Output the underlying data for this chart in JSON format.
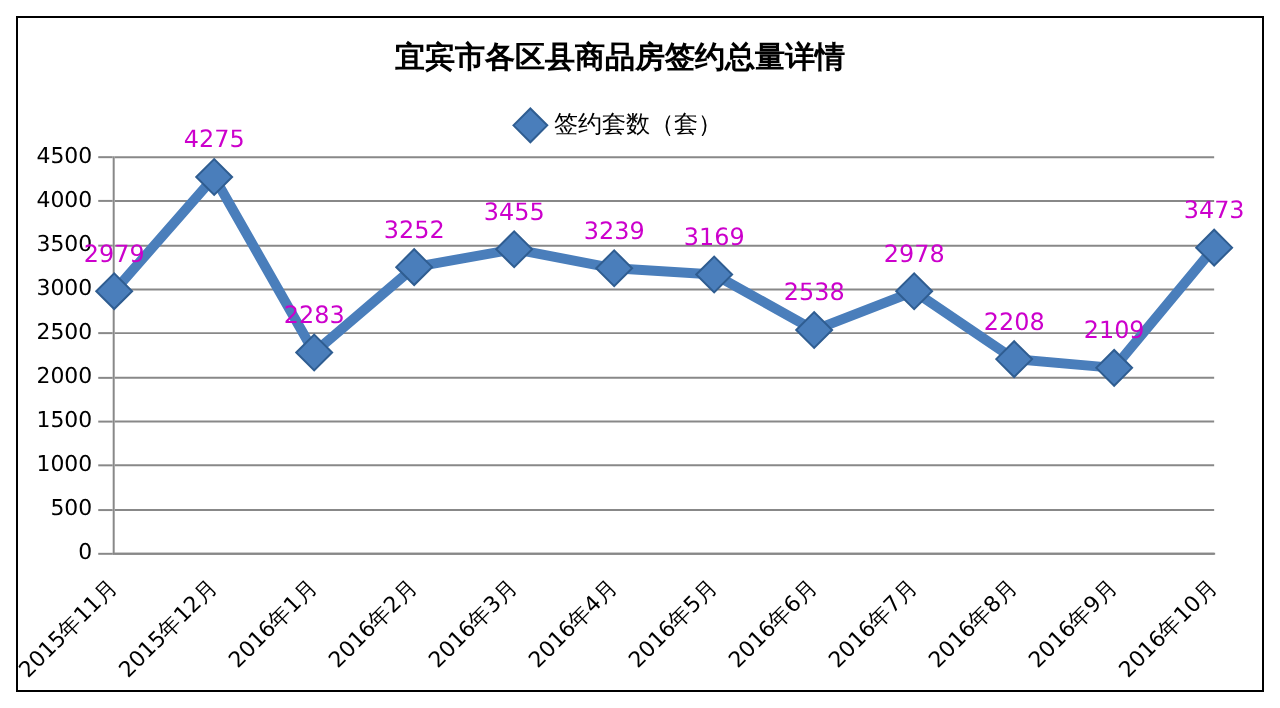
{
  "chart_data": {
    "type": "line",
    "title": "宜宾市各区县商品房签约总量详情",
    "categories": [
      "2015年11月",
      "2015年12月",
      "2016年1月",
      "2016年2月",
      "2016年3月",
      "2016年4月",
      "2016年5月",
      "2016年6月",
      "2016年7月",
      "2016年8月",
      "2016年9月",
      "2016年10月"
    ],
    "series": [
      {
        "name": "签约套数（套）",
        "color": "#4a7ebb",
        "values": [
          2979,
          4275,
          2283,
          3252,
          3455,
          3239,
          3169,
          2538,
          2978,
          2208,
          2109,
          3473
        ]
      }
    ],
    "ylim": [
      0,
      4500
    ],
    "yticks": [
      0,
      500,
      1000,
      1500,
      2000,
      2500,
      3000,
      3500,
      4000,
      4500
    ],
    "grid": "y",
    "legend": "top",
    "marker": "diamond",
    "line_style": "solid",
    "data_labels": true
  }
}
